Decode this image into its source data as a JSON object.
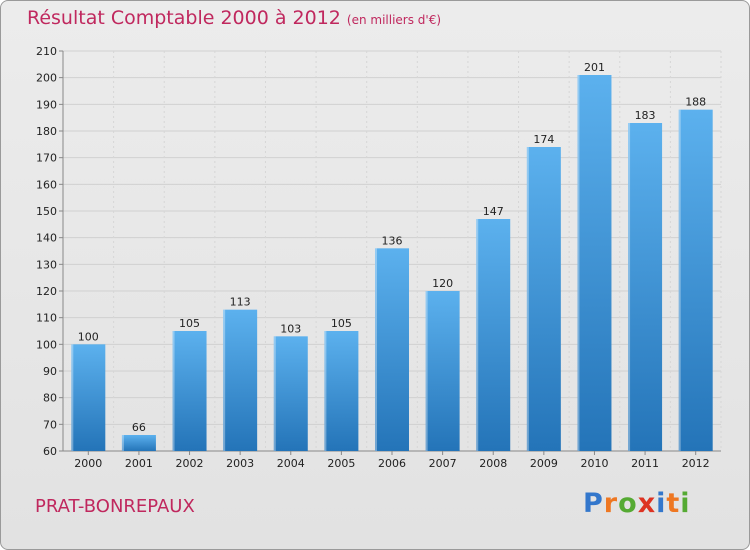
{
  "chart_data": {
    "type": "bar",
    "title": "Résultat Comptable 2000 à 2012",
    "subtitle": "(en milliers d'€)",
    "categories": [
      "2000",
      "2001",
      "2002",
      "2003",
      "2004",
      "2005",
      "2006",
      "2007",
      "2008",
      "2009",
      "2010",
      "2011",
      "2012"
    ],
    "values": [
      100,
      66,
      105,
      113,
      103,
      105,
      136,
      120,
      147,
      174,
      201,
      183,
      188
    ],
    "ylim": [
      60,
      210
    ],
    "yticks": [
      60,
      70,
      80,
      90,
      100,
      110,
      120,
      130,
      140,
      150,
      160,
      170,
      180,
      190,
      200,
      210
    ],
    "xlabel": "",
    "ylabel": "",
    "grid": true,
    "bar_color": "#3a95d8"
  },
  "place": "PRAT-BONREPAUX",
  "logo": {
    "text": "Proxiti",
    "letters": [
      {
        "ch": "P",
        "color": "#3377cc"
      },
      {
        "ch": "r",
        "color": "#ee7722"
      },
      {
        "ch": "o",
        "color": "#55aa33"
      },
      {
        "ch": "x",
        "color": "#dd3322"
      },
      {
        "ch": "i",
        "color": "#3377cc"
      },
      {
        "ch": "t",
        "color": "#ee7722"
      },
      {
        "ch": "i",
        "color": "#55aa33"
      }
    ]
  }
}
